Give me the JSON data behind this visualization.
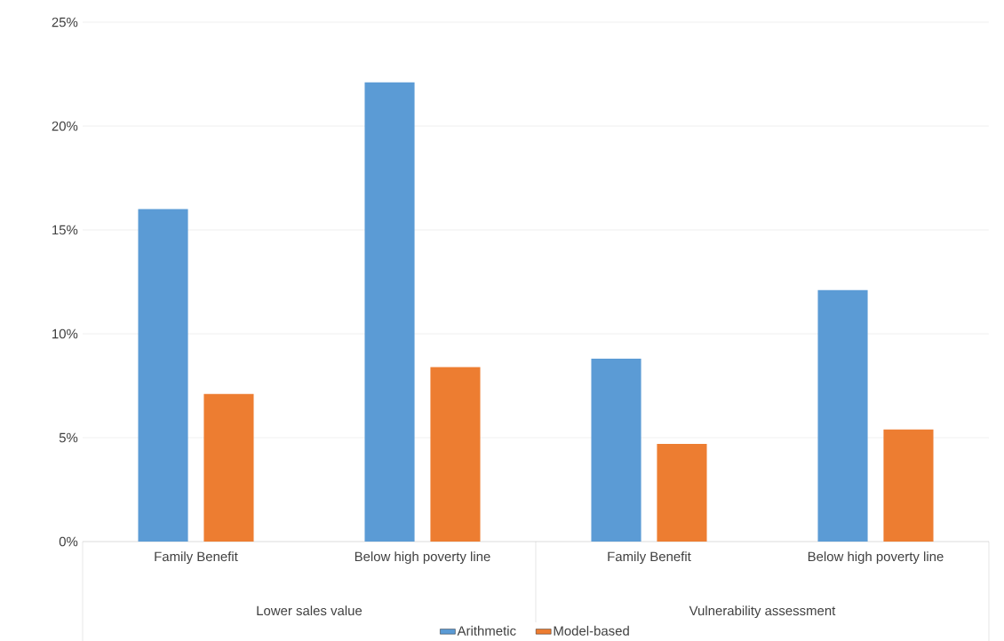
{
  "chart_data": {
    "type": "bar",
    "categories": [
      "Family Benefit",
      "Below high poverty line",
      "Family Benefit",
      "Below high poverty line"
    ],
    "series": [
      {
        "name": "Arithmetic",
        "color": "#5b9bd5",
        "values": [
          16.0,
          22.1,
          8.8,
          12.1
        ]
      },
      {
        "name": "Model-based",
        "color": "#ed7d31",
        "values": [
          7.1,
          8.4,
          4.7,
          5.4
        ]
      }
    ],
    "annotations": [
      "Lower sales value",
      "Vulnerability assessment"
    ],
    "ylim": [
      0,
      25
    ],
    "yticks": [
      {
        "value": 0,
        "label": "0%"
      },
      {
        "value": 5,
        "label": "5%"
      },
      {
        "value": 10,
        "label": "10%"
      },
      {
        "value": 15,
        "label": "15%"
      },
      {
        "value": 20,
        "label": "20%"
      },
      {
        "value": 25,
        "label": "25%"
      }
    ],
    "grid": "y",
    "legend": "bottom"
  }
}
